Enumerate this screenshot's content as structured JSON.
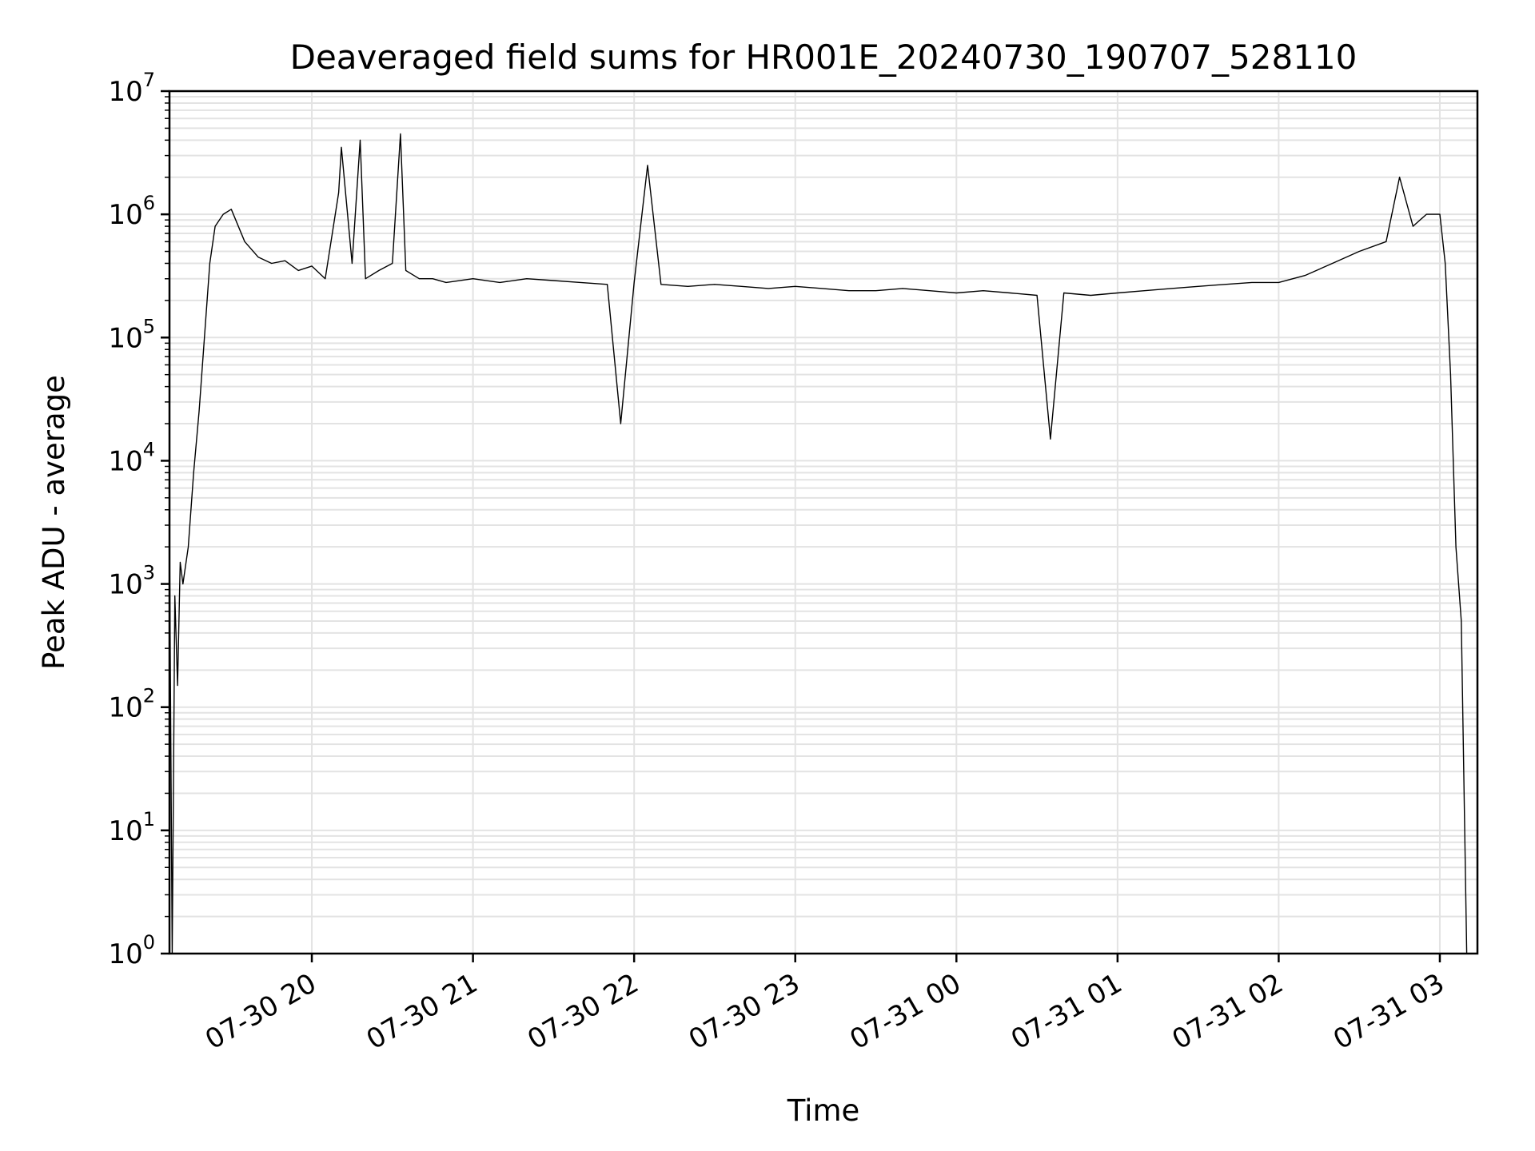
{
  "chart_data": {
    "type": "line",
    "title": "Deaveraged field sums for HR001E_20240730_190707_528110",
    "xlabel": "Time",
    "ylabel": "Peak ADU - average",
    "yscale": "log",
    "ylim": [
      1,
      10000000
    ],
    "xlim": [
      "2024-07-30 19:07",
      "2024-07-31 03:14"
    ],
    "grid": true,
    "line_color": "#000000",
    "x_ticks": [
      {
        "value": "2024-07-30 20:00",
        "label": "07-30 20"
      },
      {
        "value": "2024-07-30 21:00",
        "label": "07-30 21"
      },
      {
        "value": "2024-07-30 22:00",
        "label": "07-30 22"
      },
      {
        "value": "2024-07-30 23:00",
        "label": "07-30 23"
      },
      {
        "value": "2024-07-31 00:00",
        "label": "07-31 00"
      },
      {
        "value": "2024-07-31 01:00",
        "label": "07-31 01"
      },
      {
        "value": "2024-07-31 02:00",
        "label": "07-31 02"
      },
      {
        "value": "2024-07-31 03:00",
        "label": "07-31 03"
      }
    ],
    "y_ticks": [
      {
        "value": 1,
        "base": "10",
        "exp": "0"
      },
      {
        "value": 10,
        "base": "10",
        "exp": "1"
      },
      {
        "value": 100,
        "base": "10",
        "exp": "2"
      },
      {
        "value": 1000,
        "base": "10",
        "exp": "3"
      },
      {
        "value": 10000,
        "base": "10",
        "exp": "4"
      },
      {
        "value": 100000,
        "base": "10",
        "exp": "5"
      },
      {
        "value": 1000000,
        "base": "10",
        "exp": "6"
      },
      {
        "value": 10000000,
        "base": "10",
        "exp": "7"
      }
    ],
    "series": [
      {
        "x": [
          "2024-07-30 19:07",
          "2024-07-30 19:08",
          "2024-07-30 19:09",
          "2024-07-30 19:10",
          "2024-07-30 19:11",
          "2024-07-30 19:12",
          "2024-07-30 19:14",
          "2024-07-30 19:16",
          "2024-07-30 19:18",
          "2024-07-30 19:20",
          "2024-07-30 19:22",
          "2024-07-30 19:24",
          "2024-07-30 19:27",
          "2024-07-30 19:30",
          "2024-07-30 19:35",
          "2024-07-30 19:40",
          "2024-07-30 19:45",
          "2024-07-30 19:50",
          "2024-07-30 19:55",
          "2024-07-30 20:00",
          "2024-07-30 20:05",
          "2024-07-30 20:10",
          "2024-07-30 20:11",
          "2024-07-30 20:15",
          "2024-07-30 20:18",
          "2024-07-30 20:20",
          "2024-07-30 20:25",
          "2024-07-30 20:30",
          "2024-07-30 20:33",
          "2024-07-30 20:35",
          "2024-07-30 20:40",
          "2024-07-30 20:45",
          "2024-07-30 20:50",
          "2024-07-30 21:00",
          "2024-07-30 21:10",
          "2024-07-30 21:20",
          "2024-07-30 21:30",
          "2024-07-30 21:40",
          "2024-07-30 21:50",
          "2024-07-30 21:55",
          "2024-07-30 22:00",
          "2024-07-30 22:05",
          "2024-07-30 22:10",
          "2024-07-30 22:20",
          "2024-07-30 22:30",
          "2024-07-30 22:40",
          "2024-07-30 22:50",
          "2024-07-30 23:00",
          "2024-07-30 23:10",
          "2024-07-30 23:20",
          "2024-07-30 23:30",
          "2024-07-30 23:40",
          "2024-07-30 23:50",
          "2024-07-31 00:00",
          "2024-07-31 00:10",
          "2024-07-31 00:20",
          "2024-07-31 00:30",
          "2024-07-31 00:35",
          "2024-07-31 00:40",
          "2024-07-31 00:50",
          "2024-07-31 01:00",
          "2024-07-31 01:10",
          "2024-07-31 01:20",
          "2024-07-31 01:30",
          "2024-07-31 01:40",
          "2024-07-31 01:50",
          "2024-07-31 02:00",
          "2024-07-31 02:10",
          "2024-07-31 02:20",
          "2024-07-31 02:30",
          "2024-07-31 02:40",
          "2024-07-31 02:45",
          "2024-07-31 02:50",
          "2024-07-31 02:55",
          "2024-07-31 03:00",
          "2024-07-31 03:02",
          "2024-07-31 03:04",
          "2024-07-31 03:06",
          "2024-07-31 03:08",
          "2024-07-31 03:10",
          "2024-07-31 03:12",
          "2024-07-31 03:13"
        ],
        "values": [
          2500,
          1,
          800,
          150,
          1500,
          1000,
          2000,
          8000,
          25000,
          100000,
          400000,
          800000,
          1000000,
          1100000,
          600000,
          450000,
          400000,
          420000,
          350000,
          380000,
          300000,
          1500000,
          3500000,
          400000,
          4000000,
          300000,
          350000,
          400000,
          4500000,
          350000,
          300000,
          300000,
          280000,
          300000,
          280000,
          300000,
          290000,
          280000,
          270000,
          20000,
          280000,
          2500000,
          270000,
          260000,
          270000,
          260000,
          250000,
          260000,
          250000,
          240000,
          240000,
          250000,
          240000,
          230000,
          240000,
          230000,
          220000,
          15000,
          230000,
          220000,
          230000,
          240000,
          250000,
          260000,
          270000,
          280000,
          280000,
          320000,
          400000,
          500000,
          600000,
          2000000,
          800000,
          1000000,
          1000000,
          400000,
          50000,
          2000,
          500,
          1,
          1,
          1
        ]
      }
    ]
  }
}
